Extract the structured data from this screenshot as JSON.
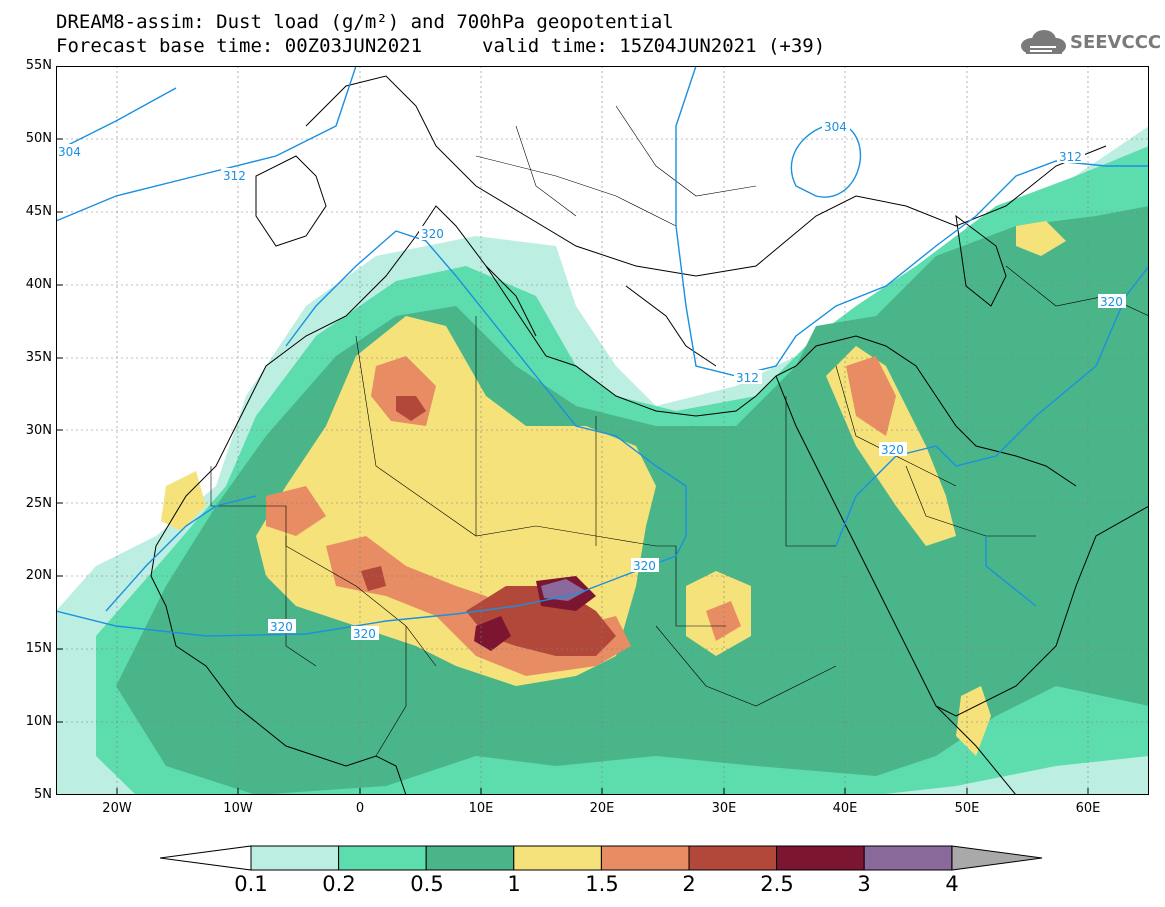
{
  "header": {
    "title_line1": "DREAM8-assim: Dust load (g/m²) and 700hPa geopotential",
    "title_line2": "Forecast base time: 00Z03JUN2021",
    "valid_time": "valid time: 15Z04JUN2021 (+39)"
  },
  "logo": {
    "text": "SEEVCCC",
    "icon": "cloud-icon"
  },
  "map": {
    "lat_labels": [
      "55N",
      "50N",
      "45N",
      "40N",
      "35N",
      "30N",
      "25N",
      "20N",
      "15N",
      "10N",
      "5N"
    ],
    "lon_labels": [
      "20W",
      "10W",
      "0",
      "10E",
      "20E",
      "30E",
      "40E",
      "50E",
      "60E"
    ],
    "lat_values": [
      55,
      50,
      45,
      40,
      35,
      30,
      25,
      20,
      15,
      10,
      5
    ],
    "lon_values": [
      -20,
      -10,
      0,
      10,
      20,
      30,
      40,
      50,
      60
    ],
    "extent": {
      "lon_min": -25,
      "lon_max": 65,
      "lat_min": 5,
      "lat_max": 55
    },
    "contour_labels": [
      "304",
      "312",
      "320",
      "320",
      "304",
      "312",
      "320",
      "312",
      "320",
      "320",
      "320"
    ]
  },
  "colorbar": {
    "labels": [
      "0.1",
      "0.2",
      "0.5",
      "1",
      "1.5",
      "2",
      "2.5",
      "3",
      "4"
    ],
    "colors": [
      "#bdeee2",
      "#5ddcae",
      "#4bb58a",
      "#f6e27a",
      "#e88c64",
      "#b2483a",
      "#7c1530",
      "#8a6a9a"
    ],
    "low_arrow_color": "#ffffff",
    "high_arrow_color": "#a9a9a9"
  }
}
